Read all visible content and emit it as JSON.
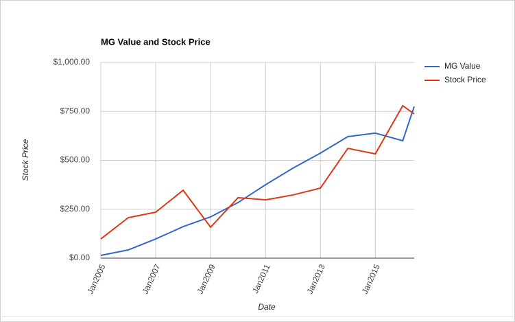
{
  "chart_data": {
    "type": "line",
    "title": "MG Value and Stock Price",
    "x_label": "Date",
    "y_label": "Stock Price",
    "x": [
      "2005-01",
      "2006-01",
      "2007-01",
      "2008-01",
      "2009-01",
      "2010-01",
      "2011-01",
      "2012-01",
      "2013-01",
      "2014-01",
      "2015-01",
      "2016-01",
      "2016-06"
    ],
    "series": [
      {
        "name": "MG Value",
        "color": "#3366cc",
        "values": [
          14,
          42,
          98,
          161,
          211,
          284,
          375,
          460,
          537,
          621,
          639,
          600,
          775
        ]
      },
      {
        "name": "Stock Price",
        "color": "#dc3912",
        "values": [
          98,
          207,
          235,
          347,
          158,
          309,
          298,
          323,
          358,
          561,
          533,
          779,
          737
        ]
      }
    ],
    "xlim": [
      "2005-01",
      "2016-06"
    ],
    "xticks": [
      {
        "value": "2005-01",
        "label": "Jan2005"
      },
      {
        "value": "2007-01",
        "label": "Jan2007"
      },
      {
        "value": "2009-01",
        "label": "Jan2009"
      },
      {
        "value": "2011-01",
        "label": "Jan2011"
      },
      {
        "value": "2013-01",
        "label": "Jan2013"
      },
      {
        "value": "2015-01",
        "label": "Jan2015"
      }
    ],
    "ylim": [
      0,
      1000
    ],
    "yticks": [
      {
        "value": 0,
        "label": "$0.00"
      },
      {
        "value": 250,
        "label": "$250.00"
      },
      {
        "value": 500,
        "label": "$500.00"
      },
      {
        "value": 750,
        "label": "$750.00"
      },
      {
        "value": 1000,
        "label": "$1,000.00"
      }
    ],
    "grid": true,
    "legend": "right"
  }
}
